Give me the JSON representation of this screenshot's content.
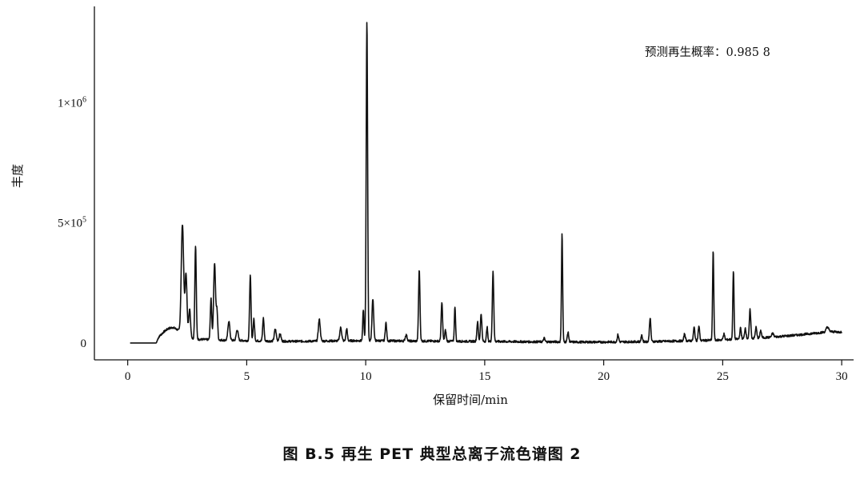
{
  "chart_data": {
    "type": "line",
    "title": "",
    "xlabel": "保留时间/min",
    "ylabel": "丰度",
    "xlim": [
      -1.4,
      30.5
    ],
    "ylim": [
      -70000,
      1400000
    ],
    "x_ticks": [
      0,
      5,
      10,
      15,
      20,
      25,
      30
    ],
    "x_tick_labels": [
      "0",
      "5",
      "10",
      "15",
      "20",
      "25",
      "30"
    ],
    "y_ticks": [
      0,
      500000,
      1000000
    ],
    "y_tick_labels": [
      {
        "base": "0",
        "exp": ""
      },
      {
        "base": "5×10",
        "exp": "5"
      },
      {
        "base": "1×10",
        "exp": "6"
      }
    ],
    "grid": false,
    "annotation": "预测再生概率：0.985 8",
    "series": [
      {
        "baseline": [
          [
            0.1,
            0
          ],
          [
            1.2,
            0
          ],
          [
            1.3,
            25000
          ],
          [
            1.5,
            45000
          ],
          [
            1.7,
            60000
          ],
          [
            1.9,
            65000
          ],
          [
            2.1,
            55000
          ],
          [
            2.3,
            35000
          ],
          [
            2.6,
            20000
          ],
          [
            3.0,
            15000
          ],
          [
            3.5,
            14000
          ],
          [
            4.0,
            12000
          ],
          [
            5.0,
            10000
          ],
          [
            6.0,
            8000
          ],
          [
            7.0,
            7000
          ],
          [
            8.0,
            8000
          ],
          [
            9.0,
            9000
          ],
          [
            10.0,
            10000
          ],
          [
            11.0,
            9000
          ],
          [
            12.0,
            8000
          ],
          [
            13.0,
            8000
          ],
          [
            14.0,
            7000
          ],
          [
            15.0,
            7000
          ],
          [
            16.0,
            6000
          ],
          [
            17.0,
            5000
          ],
          [
            18.0,
            5000
          ],
          [
            19.0,
            4000
          ],
          [
            20.0,
            4000
          ],
          [
            21.0,
            5000
          ],
          [
            22.0,
            6000
          ],
          [
            23.0,
            8000
          ],
          [
            24.0,
            10000
          ],
          [
            25.0,
            13000
          ],
          [
            26.0,
            18000
          ],
          [
            27.0,
            24000
          ],
          [
            28.0,
            32000
          ],
          [
            29.0,
            42000
          ],
          [
            29.5,
            48000
          ],
          [
            30.0,
            45000
          ]
        ],
        "peaks": [
          [
            2.3,
            460000,
            0.05
          ],
          [
            2.45,
            260000,
            0.04
          ],
          [
            2.6,
            120000,
            0.04
          ],
          [
            2.85,
            390000,
            0.03
          ],
          [
            3.5,
            170000,
            0.03
          ],
          [
            3.65,
            320000,
            0.04
          ],
          [
            3.75,
            120000,
            0.03
          ],
          [
            4.25,
            80000,
            0.04
          ],
          [
            4.6,
            45000,
            0.04
          ],
          [
            5.15,
            270000,
            0.03
          ],
          [
            5.3,
            90000,
            0.03
          ],
          [
            5.7,
            95000,
            0.03
          ],
          [
            6.2,
            50000,
            0.04
          ],
          [
            6.4,
            30000,
            0.04
          ],
          [
            8.05,
            90000,
            0.04
          ],
          [
            8.95,
            55000,
            0.04
          ],
          [
            9.2,
            50000,
            0.03
          ],
          [
            9.9,
            130000,
            0.025
          ],
          [
            10.05,
            1330000,
            0.03
          ],
          [
            10.3,
            175000,
            0.035
          ],
          [
            10.85,
            75000,
            0.03
          ],
          [
            11.7,
            25000,
            0.04
          ],
          [
            12.25,
            295000,
            0.03
          ],
          [
            13.2,
            160000,
            0.03
          ],
          [
            13.35,
            45000,
            0.03
          ],
          [
            13.75,
            145000,
            0.025
          ],
          [
            14.7,
            80000,
            0.03
          ],
          [
            14.85,
            115000,
            0.03
          ],
          [
            15.1,
            60000,
            0.025
          ],
          [
            15.35,
            290000,
            0.03
          ],
          [
            17.5,
            15000,
            0.03
          ],
          [
            18.25,
            450000,
            0.025
          ],
          [
            18.5,
            40000,
            0.03
          ],
          [
            20.6,
            30000,
            0.03
          ],
          [
            21.6,
            25000,
            0.03
          ],
          [
            21.95,
            98000,
            0.03
          ],
          [
            23.4,
            30000,
            0.03
          ],
          [
            23.8,
            55000,
            0.03
          ],
          [
            24.0,
            60000,
            0.03
          ],
          [
            24.6,
            370000,
            0.025
          ],
          [
            25.05,
            25000,
            0.03
          ],
          [
            25.45,
            285000,
            0.025
          ],
          [
            25.75,
            45000,
            0.03
          ],
          [
            25.95,
            45000,
            0.03
          ],
          [
            26.15,
            120000,
            0.03
          ],
          [
            26.4,
            45000,
            0.03
          ],
          [
            26.6,
            30000,
            0.03
          ],
          [
            27.1,
            15000,
            0.04
          ],
          [
            29.4,
            20000,
            0.05
          ]
        ]
      }
    ]
  },
  "caption": "图 B.5    再生 PET 典型总离子流色谱图 2"
}
